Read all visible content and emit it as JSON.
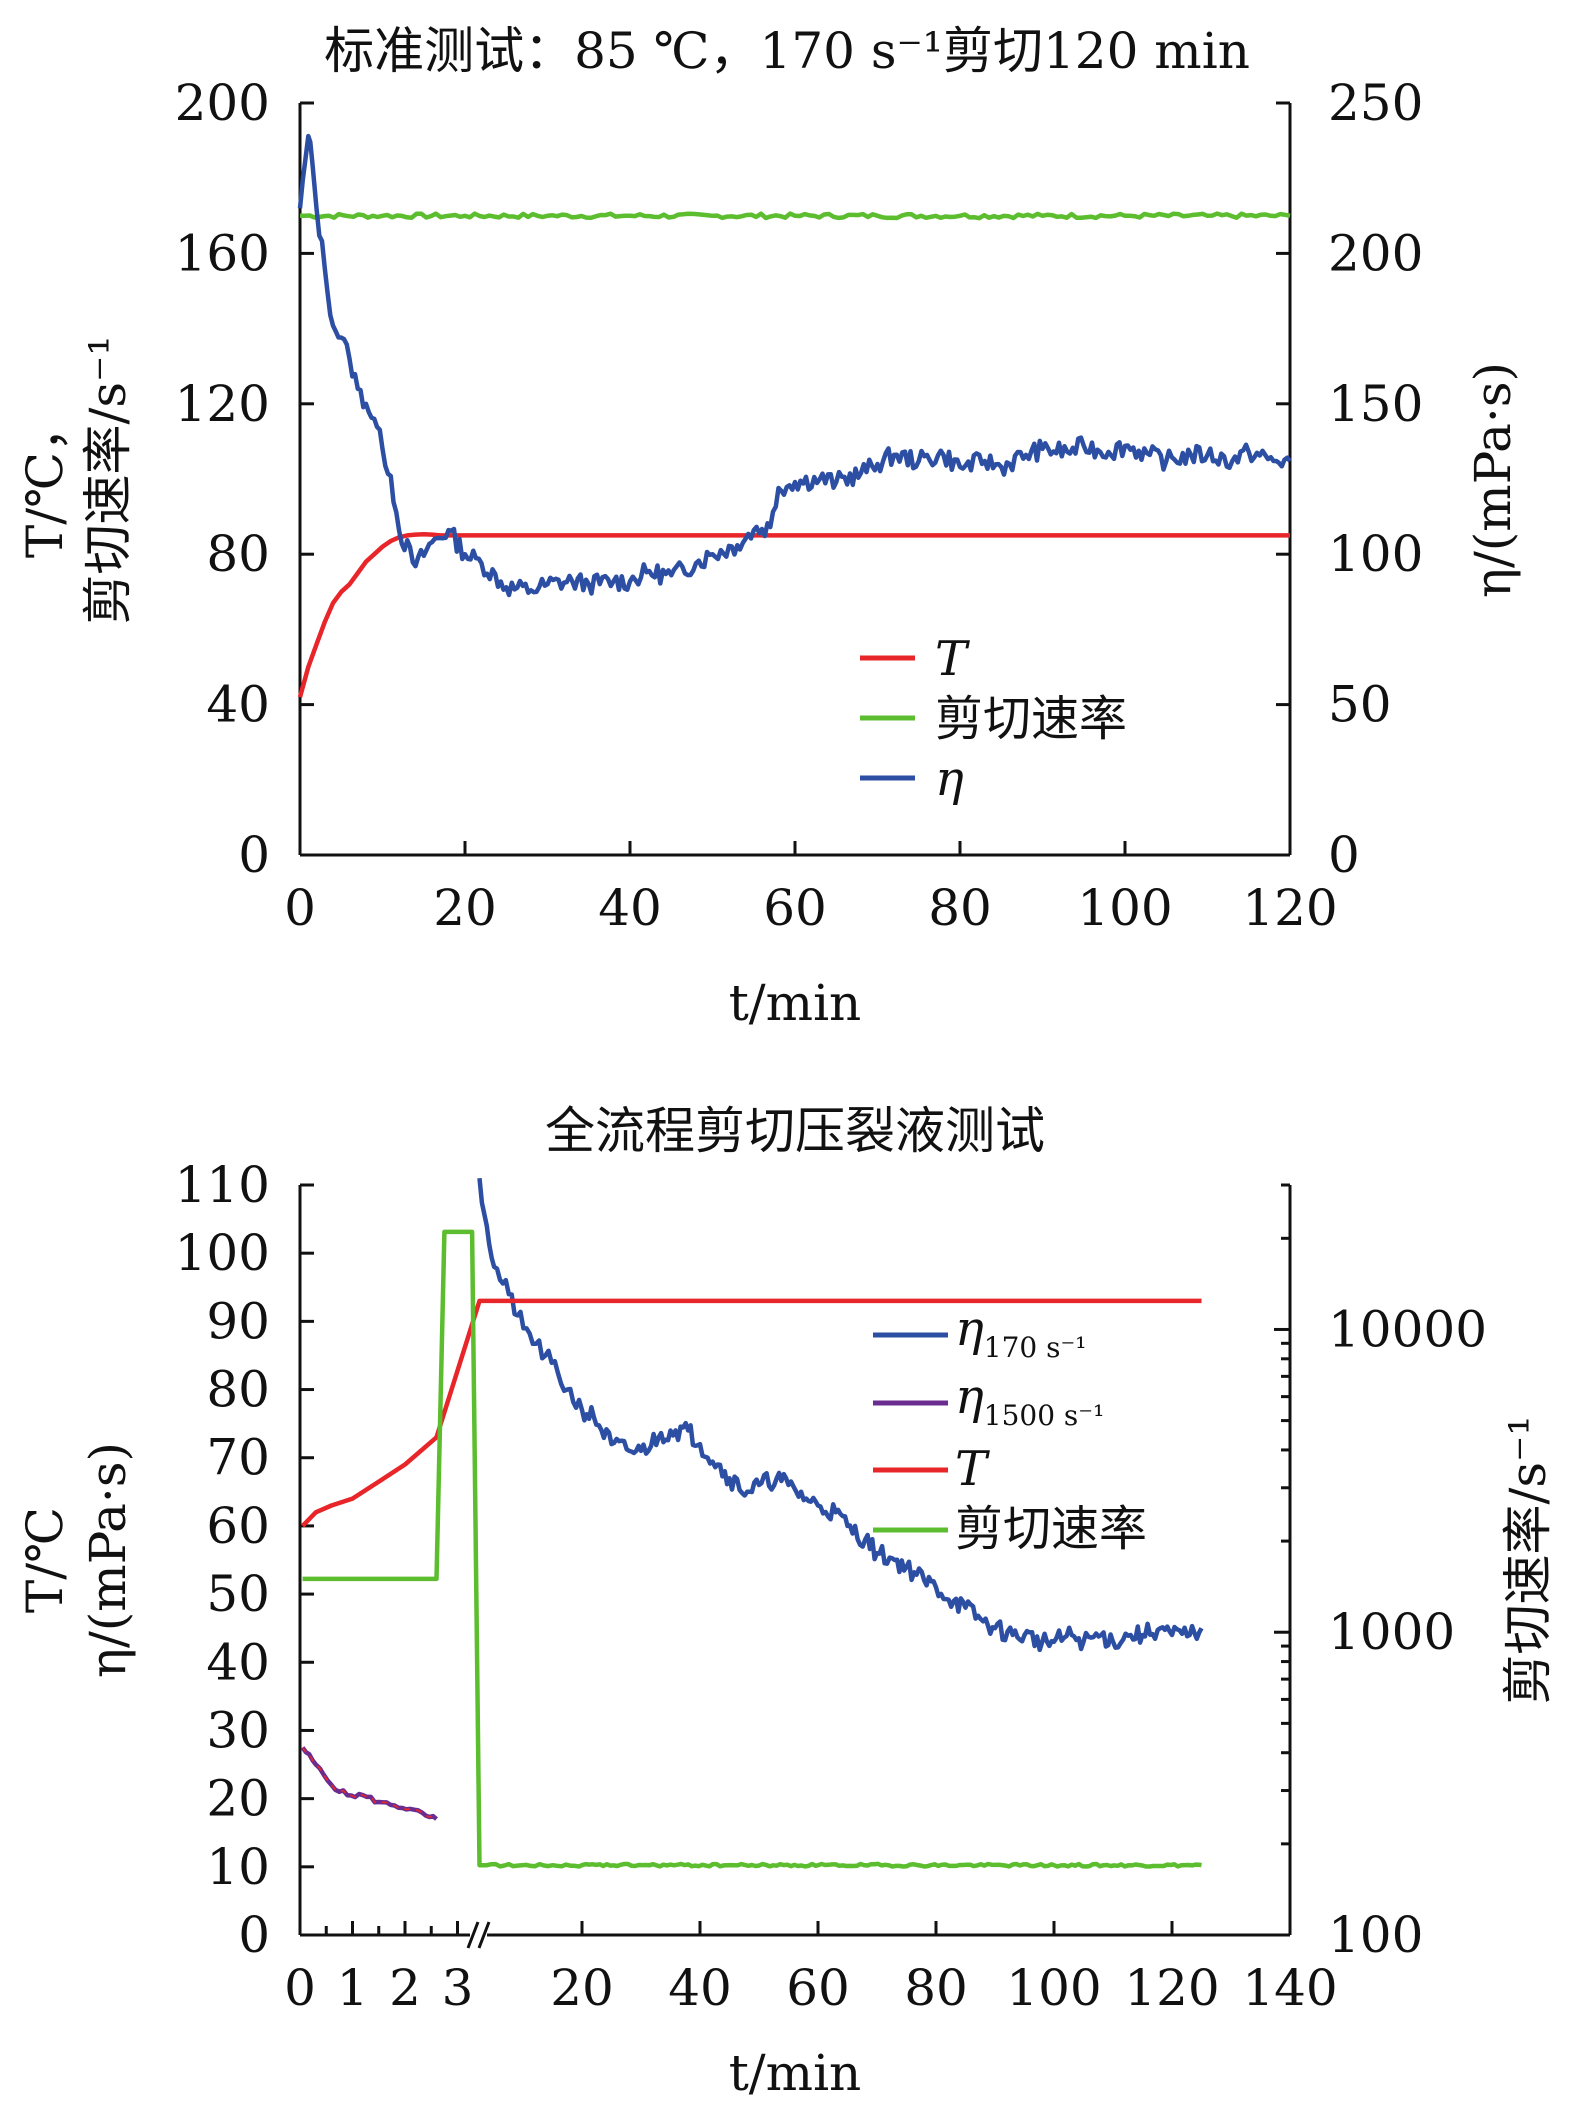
{
  "colors": {
    "T": "#e8262a",
    "shear": "#5cbd2f",
    "eta": "#2c4ea3",
    "eta1500": "#6a2c8f"
  },
  "chart_data": [
    {
      "type": "line",
      "title": "标准测试：85 ℃，170 s⁻¹剪切120 min",
      "xlabel": "t/min",
      "ylabel_left": [
        "T/℃，",
        "剪切速率/s⁻¹"
      ],
      "ylabel_right": "η/(mPa·s)",
      "xlim": [
        0,
        120
      ],
      "ylim_left": [
        0,
        200
      ],
      "ylim_right": [
        0,
        250
      ],
      "x_ticks": [
        "0",
        "20",
        "40",
        "60",
        "80",
        "100",
        "120"
      ],
      "y_ticks_left": [
        "0",
        "40",
        "80",
        "120",
        "160",
        "200"
      ],
      "y_ticks_right": [
        "0",
        "50",
        "100",
        "150",
        "200",
        "250"
      ],
      "legend_position": "center-right",
      "series": [
        {
          "name": "T",
          "axis": "left",
          "color_key": "T",
          "x": [
            0,
            1,
            2,
            3,
            4,
            5,
            6,
            7,
            8,
            9,
            10,
            11,
            12,
            13,
            14,
            15,
            16,
            17,
            18,
            120
          ],
          "y": [
            42,
            50,
            56,
            62,
            67,
            70,
            72,
            75,
            78,
            80,
            82,
            83.5,
            84.5,
            85,
            85.2,
            85.3,
            85.2,
            85,
            85,
            85
          ]
        },
        {
          "name": "剪切速率",
          "axis": "left",
          "color_key": "shear",
          "x": [
            0,
            10,
            20,
            30,
            40,
            50,
            60,
            70,
            80,
            90,
            100,
            110,
            120
          ],
          "y": [
            170,
            170,
            170,
            170,
            170,
            170,
            170,
            170,
            170,
            170,
            170,
            170,
            170
          ]
        },
        {
          "name": "η",
          "axis": "right",
          "color_key": "eta",
          "x": [
            0,
            1,
            1.5,
            2,
            3,
            4,
            5,
            6,
            7,
            8,
            9,
            10,
            11,
            12,
            14,
            16,
            18,
            20,
            22,
            25,
            28,
            30,
            33,
            35,
            38,
            40,
            42,
            45,
            48,
            50,
            53,
            55,
            57,
            58,
            60,
            63,
            65,
            68,
            70,
            72,
            75,
            78,
            80,
            83,
            85,
            88,
            90,
            93,
            95,
            98,
            100,
            103,
            105,
            108,
            110,
            113,
            115,
            118,
            120
          ],
          "y": [
            215,
            239,
            230,
            215,
            195,
            176,
            172,
            165,
            155,
            150,
            145,
            135,
            126,
            108,
            96,
            104,
            108,
            100,
            97,
            89,
            88,
            90,
            91,
            90,
            91,
            91,
            94,
            93,
            97,
            100,
            103,
            108,
            109,
            122,
            124,
            125,
            124,
            127,
            130,
            133,
            131,
            133,
            129,
            131,
            129,
            133,
            135,
            134,
            136,
            134,
            136,
            133,
            131,
            133,
            133,
            131,
            134,
            131,
            131
          ]
        }
      ]
    },
    {
      "type": "line",
      "title": "全流程剪切压裂液测试",
      "xlabel": "t/min",
      "ylabel_left": [
        "T/℃",
        "η/(mPa·s)"
      ],
      "ylabel_right": "剪切速率/s⁻¹",
      "x_axis_break": true,
      "x_ticks": [
        "0",
        "1",
        "2",
        "3",
        "20",
        "40",
        "60",
        "80",
        "100",
        "120",
        "140"
      ],
      "ylim_left": [
        0,
        110
      ],
      "y_ticks_left": [
        "0",
        "10",
        "20",
        "30",
        "40",
        "50",
        "60",
        "70",
        "80",
        "90",
        "100",
        "110"
      ],
      "ylim_right": [
        100,
        30000
      ],
      "y_scale_right": "log",
      "y_ticks_right": [
        "100",
        "1000",
        "10000"
      ],
      "legend_position": "center-right",
      "series": [
        {
          "name": "η170 s⁻¹",
          "label_main": "η",
          "label_sub": "170 s⁻¹",
          "axis": "left",
          "color_key": "eta",
          "x": [
            6,
            7,
            8,
            10,
            12,
            15,
            18,
            20,
            22,
            25,
            28,
            30,
            33,
            35,
            38,
            40,
            43,
            45,
            48,
            50,
            53,
            55,
            58,
            60,
            63,
            65,
            68,
            70,
            73,
            75,
            78,
            80,
            83,
            85,
            88,
            90,
            93,
            95,
            98,
            100,
            103,
            105,
            108,
            110,
            113,
            115,
            118,
            120,
            123,
            125
          ],
          "y": [
            111,
            104,
            98,
            94,
            89,
            85,
            80,
            77,
            76,
            72,
            71,
            71,
            73,
            74,
            74,
            72,
            69,
            67,
            65,
            66,
            67,
            66,
            64,
            63,
            62,
            60,
            58,
            56,
            55,
            54,
            52,
            51,
            49,
            48,
            46,
            45,
            44,
            44,
            43,
            43,
            44,
            43,
            44,
            43,
            44,
            44,
            45,
            44,
            44,
            45
          ]
        },
        {
          "name": "η1500 s⁻¹",
          "label_main": "η",
          "label_sub": "1500 s⁻¹",
          "axis": "left",
          "color_key": "eta1500",
          "x": [
            0.05,
            0.3,
            0.6,
            0.9,
            1.2,
            1.5,
            1.8,
            2.1,
            2.4,
            2.6
          ],
          "y": [
            27.5,
            25,
            22,
            20.5,
            20.5,
            19.5,
            19,
            18.5,
            17.5,
            17
          ]
        },
        {
          "name": "T",
          "axis": "left",
          "color_key": "T",
          "x": [
            0.05,
            0.3,
            0.6,
            1,
            1.5,
            2,
            2.6,
            6,
            125
          ],
          "y": [
            60,
            62,
            63,
            64,
            66.5,
            69,
            73,
            93,
            93
          ]
        },
        {
          "name": "剪切速率",
          "axis": "right",
          "color_key": "shear",
          "x": [
            0.05,
            1,
            2,
            2.6,
            2.75,
            3.2,
            5.0,
            6,
            7,
            20,
            60,
            100,
            125
          ],
          "y": [
            1500,
            1500,
            1500,
            1500,
            21000,
            21000,
            21000,
            170,
            170,
            170,
            170,
            170,
            170
          ]
        }
      ]
    }
  ]
}
